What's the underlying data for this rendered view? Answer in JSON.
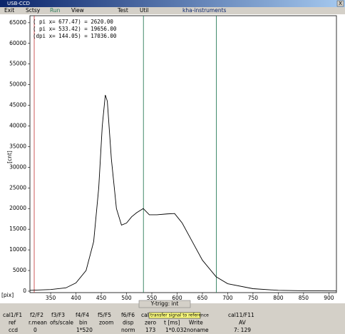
{
  "window": {
    "title": "USB-CCD",
    "close": "X"
  },
  "menu": [
    "Exit",
    "Sctsy",
    "Run",
    "View",
    "Test",
    "Util",
    "kha-instruments"
  ],
  "chart_data": {
    "type": "line",
    "x_label": "[pix]",
    "y_label": "[cnt]",
    "annotations": [
      "( pi x=   677.47) = 2620.00",
      "( pi x=   533.42) = 19656.00",
      "(dpi x=   144.05) = 17036.00"
    ],
    "cursors": [
      533.42,
      677.47
    ],
    "cursor_color": "#2e7d5b",
    "x": [
      309,
      350,
      380,
      400,
      420,
      435,
      445,
      452,
      458,
      462,
      470,
      480,
      490,
      500,
      510,
      520,
      533,
      545,
      560,
      580,
      595,
      610,
      630,
      650,
      677,
      700,
      750,
      800,
      850,
      915
    ],
    "series": [
      {
        "color": "#000000",
        "values": [
          200,
          400,
          800,
          2000,
          5000,
          12000,
          25000,
          40000,
          47500,
          46000,
          32000,
          20000,
          16000,
          16500,
          18000,
          19000,
          20000,
          18500,
          18500,
          18700,
          18800,
          16500,
          12000,
          7500,
          3500,
          1800,
          600,
          200,
          100,
          50
        ]
      }
    ],
    "xlim": [
      309,
      915
    ],
    "ylim": [
      -350,
      66700
    ],
    "xticks": [
      350,
      400,
      450,
      500,
      550,
      600,
      650,
      700,
      750,
      800,
      850,
      900
    ],
    "yticks": [
      0,
      5000,
      10000,
      15000,
      20000,
      25000,
      30000,
      35000,
      40000,
      45000,
      50000,
      55000,
      60000,
      65000
    ]
  },
  "panel": {
    "button": "Y-trigg: int",
    "tooltip": "transfer signal to reference",
    "rows": [
      [
        "cal1/F1",
        "f2/F2",
        "f3/F3",
        "f4/F4",
        "f5/F5",
        "f6/F6",
        "cal",
        "cal11/F11"
      ],
      [
        "ref",
        "r.mean",
        "ofs/scale",
        "bin",
        "zoom",
        "disp",
        "zero",
        "t [ms]",
        "Write",
        "AV"
      ],
      [
        "ccd",
        "0",
        "1*520",
        "norm",
        "173",
        "1*0.032",
        "noname",
        "7: 129"
      ]
    ]
  }
}
